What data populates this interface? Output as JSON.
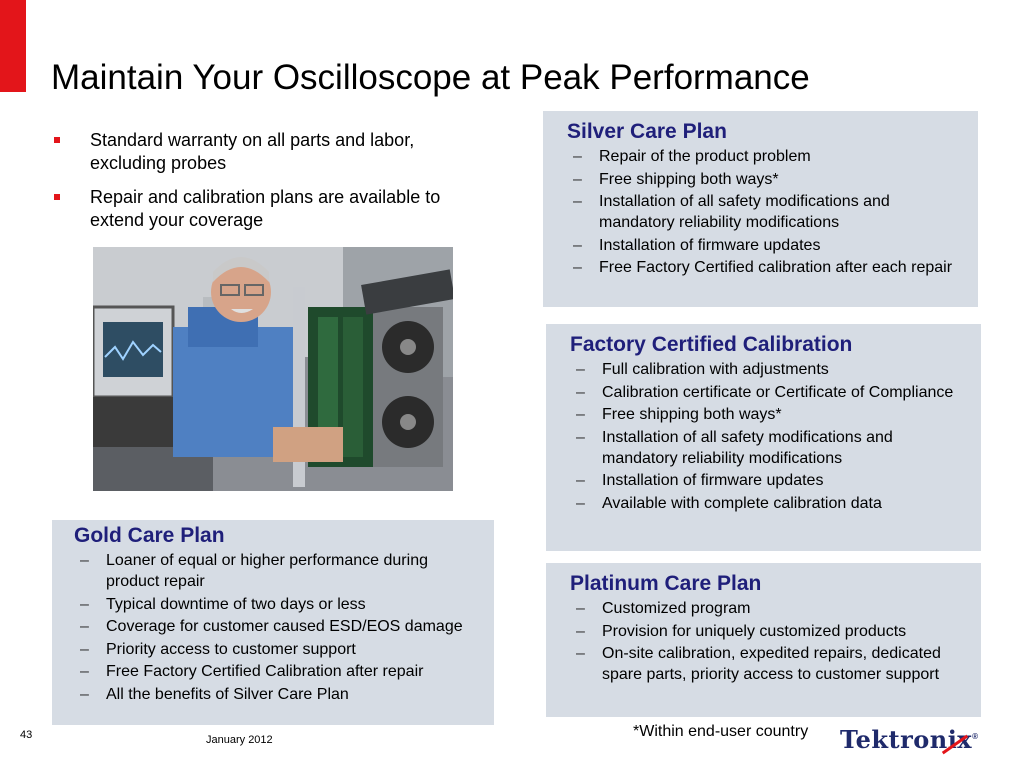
{
  "slide": {
    "title": "Maintain Your Oscilloscope at Peak Performance",
    "page_number": "43",
    "date": "January 2012",
    "footnote": "*Within end-user country"
  },
  "bullets": [
    "Standard warranty on all parts and labor, excluding probes",
    "Repair and calibration plans are available to extend your coverage"
  ],
  "silver": {
    "title": "Silver Care Plan",
    "items": [
      "Repair of the product problem",
      "Free shipping both ways*",
      "Installation of all safety modifications and mandatory reliability modifications",
      "Installation of firmware updates",
      "Free Factory Certified calibration after each repair"
    ]
  },
  "factory": {
    "title": "Factory Certified Calibration",
    "items": [
      "Full calibration with adjustments",
      "Calibration certificate or Certificate of Compliance",
      "Free shipping both ways*",
      "Installation of all safety modifications and mandatory reliability modifications",
      "Installation of firmware updates",
      "Available with complete calibration data"
    ]
  },
  "platinum": {
    "title": "Platinum Care Plan",
    "items": [
      "Customized program",
      "Provision for uniquely customized products",
      "On-site calibration, expedited repairs, dedicated spare parts, priority access to customer support"
    ]
  },
  "gold": {
    "title": "Gold Care Plan",
    "items": [
      "Loaner of equal or higher performance during product repair",
      "Typical downtime of two days or less",
      "Coverage for customer caused ESD/EOS damage",
      "Priority access to customer support",
      "Free Factory Certified Calibration after repair",
      "All the benefits of Silver Care Plan"
    ]
  },
  "logo": {
    "text": "Tektronix",
    "mark": "®"
  },
  "colors": {
    "accent_red": "#e3151a",
    "panel_bg": "#d6dce4",
    "heading_blue": "#1f1f7a"
  }
}
